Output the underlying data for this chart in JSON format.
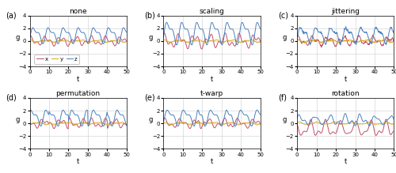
{
  "titles": [
    "none",
    "scaling",
    "jittering",
    "permutation",
    "t-warp",
    "rotation"
  ],
  "labels": [
    "(a)",
    "(b)",
    "(c)",
    "(d)",
    "(e)",
    "(f)"
  ],
  "colors": {
    "x": "#c0506a",
    "y": "#d4a820",
    "z": "#4a80c0"
  },
  "ylim": [
    -4.0,
    4.0
  ],
  "xlim": [
    0,
    50
  ],
  "xlabel": "t",
  "ylabel": "g",
  "yticks": [
    -4.0,
    -2.0,
    0.0,
    2.0,
    4.0
  ],
  "xticks": [
    0,
    10,
    20,
    30,
    40,
    50
  ],
  "n_points": 300,
  "figsize": [
    5.0,
    2.19
  ],
  "dpi": 100,
  "legend_labels": [
    "x",
    "y",
    "z"
  ]
}
